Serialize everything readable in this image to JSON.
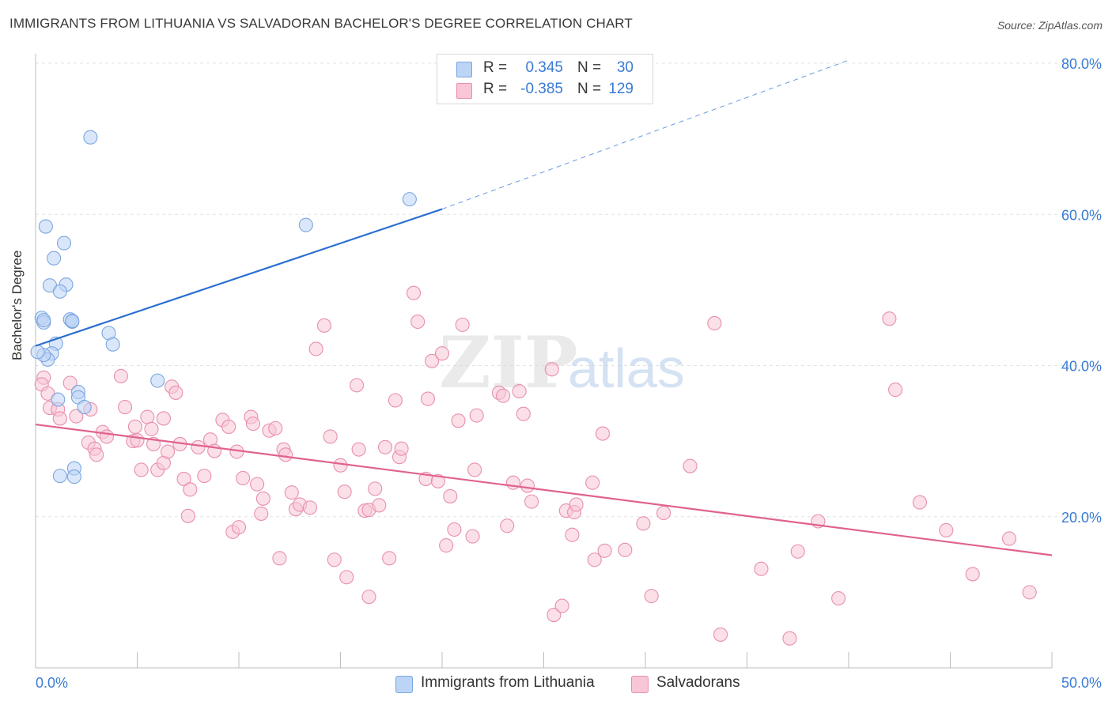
{
  "header": {
    "title": "IMMIGRANTS FROM LITHUANIA VS SALVADORAN BACHELOR'S DEGREE CORRELATION CHART",
    "source": "Source: ZipAtlas.com"
  },
  "watermark": {
    "zip": "ZIP",
    "atlas": "atlas"
  },
  "legend": {
    "rows": [
      {
        "r_label": "R = ",
        "r_value": "0.345",
        "n_label": "N = ",
        "n_value": "30"
      },
      {
        "r_label": "R = ",
        "r_value": "-0.385",
        "n_label": "N = ",
        "n_value": "129"
      }
    ]
  },
  "bottom_legend": {
    "items": [
      {
        "label": "Immigrants from Lithuania"
      },
      {
        "label": "Salvadorans"
      }
    ]
  },
  "colors": {
    "blue_fill": "#bcd4f5",
    "blue_stroke": "#7aa6e0",
    "blue_line": "#2a6fd1",
    "pink_fill": "#f8c6d6",
    "pink_stroke": "#e88fae",
    "pink_line": "#e0628f",
    "tick_label": "#3a7bd5",
    "grid": "#e3e3e3"
  },
  "chart_data": {
    "type": "scatter",
    "title": "IMMIGRANTS FROM LITHUANIA VS SALVADORAN BACHELOR'S DEGREE CORRELATION CHART",
    "xlabel": "",
    "ylabel": "Bachelor's Degree",
    "xlim": [
      0,
      50
    ],
    "ylim": [
      0,
      80
    ],
    "x_tick_labels": [
      "0.0%",
      "50.0%"
    ],
    "y_ticks": [
      20,
      40,
      60,
      80
    ],
    "y_tick_labels": [
      "20.0%",
      "40.0%",
      "60.0%",
      "80.0%"
    ],
    "grid": true,
    "legend_position": "top-center",
    "series": [
      {
        "name": "Immigrants from Lithuania",
        "r": 0.345,
        "n": 30,
        "trend": {
          "x": [
            0,
            20
          ],
          "y": [
            42.6,
            60.7
          ],
          "dashed_to": [
            40,
            80.4
          ]
        },
        "points": [
          [
            2.7,
            70.2
          ],
          [
            18.4,
            62.0
          ],
          [
            13.3,
            58.6
          ],
          [
            0.5,
            58.4
          ],
          [
            1.4,
            56.2
          ],
          [
            0.9,
            54.2
          ],
          [
            0.7,
            50.6
          ],
          [
            1.5,
            50.7
          ],
          [
            1.2,
            49.8
          ],
          [
            0.3,
            46.3
          ],
          [
            0.4,
            45.7
          ],
          [
            1.7,
            46.1
          ],
          [
            1.8,
            45.8
          ],
          [
            3.6,
            44.3
          ],
          [
            3.8,
            42.8
          ],
          [
            1.0,
            42.9
          ],
          [
            0.8,
            41.6
          ],
          [
            0.6,
            40.8
          ],
          [
            0.4,
            41.4
          ],
          [
            0.1,
            41.8
          ],
          [
            0.4,
            46.0
          ],
          [
            1.8,
            45.9
          ],
          [
            2.1,
            36.5
          ],
          [
            1.1,
            35.5
          ],
          [
            2.1,
            35.8
          ],
          [
            6.0,
            38.0
          ],
          [
            2.4,
            34.5
          ],
          [
            1.9,
            26.4
          ],
          [
            1.2,
            25.4
          ],
          [
            1.9,
            25.3
          ]
        ]
      },
      {
        "name": "Salvadorans",
        "r": -0.385,
        "n": 129,
        "trend": {
          "x": [
            0,
            50
          ],
          "y": [
            32.2,
            14.9
          ]
        },
        "points": [
          [
            0.4,
            38.4
          ],
          [
            0.3,
            37.5
          ],
          [
            0.6,
            36.3
          ],
          [
            0.7,
            34.4
          ],
          [
            1.1,
            34.2
          ],
          [
            1.2,
            33.0
          ],
          [
            1.7,
            37.7
          ],
          [
            2.0,
            33.3
          ],
          [
            2.7,
            34.2
          ],
          [
            2.6,
            29.8
          ],
          [
            2.9,
            29.0
          ],
          [
            3.3,
            31.2
          ],
          [
            3.5,
            30.6
          ],
          [
            3.0,
            28.2
          ],
          [
            4.2,
            38.6
          ],
          [
            4.4,
            34.5
          ],
          [
            4.8,
            30.0
          ],
          [
            4.9,
            31.9
          ],
          [
            5.0,
            30.1
          ],
          [
            5.2,
            26.2
          ],
          [
            5.5,
            33.2
          ],
          [
            5.7,
            31.6
          ],
          [
            5.8,
            29.6
          ],
          [
            6.0,
            26.2
          ],
          [
            6.3,
            27.1
          ],
          [
            6.3,
            33.0
          ],
          [
            6.7,
            37.2
          ],
          [
            6.9,
            36.4
          ],
          [
            6.5,
            28.6
          ],
          [
            7.1,
            29.6
          ],
          [
            7.3,
            25.0
          ],
          [
            7.6,
            23.6
          ],
          [
            7.5,
            20.1
          ],
          [
            8.0,
            29.2
          ],
          [
            8.3,
            25.4
          ],
          [
            8.6,
            30.2
          ],
          [
            8.8,
            28.7
          ],
          [
            9.2,
            32.8
          ],
          [
            9.5,
            31.9
          ],
          [
            9.7,
            18.0
          ],
          [
            9.9,
            28.6
          ],
          [
            10.0,
            18.6
          ],
          [
            10.2,
            25.1
          ],
          [
            10.6,
            33.2
          ],
          [
            10.7,
            32.3
          ],
          [
            10.9,
            24.3
          ],
          [
            11.1,
            20.4
          ],
          [
            11.2,
            22.4
          ],
          [
            11.5,
            31.4
          ],
          [
            11.8,
            31.7
          ],
          [
            12.0,
            14.5
          ],
          [
            12.2,
            28.9
          ],
          [
            12.3,
            28.2
          ],
          [
            12.6,
            23.2
          ],
          [
            12.8,
            21.0
          ],
          [
            13.0,
            21.6
          ],
          [
            13.5,
            21.2
          ],
          [
            13.8,
            42.2
          ],
          [
            14.2,
            45.3
          ],
          [
            14.5,
            30.6
          ],
          [
            14.7,
            14.3
          ],
          [
            15.0,
            26.8
          ],
          [
            15.2,
            23.3
          ],
          [
            15.3,
            12.0
          ],
          [
            15.8,
            37.4
          ],
          [
            15.9,
            28.9
          ],
          [
            16.2,
            20.8
          ],
          [
            16.4,
            20.9
          ],
          [
            16.4,
            9.4
          ],
          [
            16.7,
            23.7
          ],
          [
            16.9,
            21.5
          ],
          [
            17.2,
            29.2
          ],
          [
            17.4,
            14.5
          ],
          [
            17.7,
            35.4
          ],
          [
            17.9,
            27.9
          ],
          [
            18.0,
            29.0
          ],
          [
            18.6,
            49.6
          ],
          [
            18.8,
            45.8
          ],
          [
            19.2,
            25.0
          ],
          [
            19.3,
            35.6
          ],
          [
            19.5,
            40.6
          ],
          [
            19.8,
            24.7
          ],
          [
            20.0,
            41.6
          ],
          [
            20.2,
            16.2
          ],
          [
            20.4,
            22.7
          ],
          [
            20.6,
            18.3
          ],
          [
            20.8,
            32.7
          ],
          [
            21.0,
            45.4
          ],
          [
            21.5,
            17.4
          ],
          [
            21.6,
            26.2
          ],
          [
            21.7,
            33.4
          ],
          [
            22.8,
            36.4
          ],
          [
            23.0,
            36.0
          ],
          [
            23.2,
            18.8
          ],
          [
            23.5,
            24.5
          ],
          [
            23.8,
            36.6
          ],
          [
            24.0,
            33.6
          ],
          [
            24.2,
            24.1
          ],
          [
            24.4,
            22.0
          ],
          [
            25.4,
            39.5
          ],
          [
            25.5,
            7.0
          ],
          [
            25.9,
            8.2
          ],
          [
            26.1,
            20.8
          ],
          [
            26.4,
            17.6
          ],
          [
            26.5,
            20.6
          ],
          [
            26.6,
            21.6
          ],
          [
            27.4,
            24.5
          ],
          [
            27.5,
            14.3
          ],
          [
            27.9,
            31.0
          ],
          [
            28.0,
            15.5
          ],
          [
            29.0,
            15.6
          ],
          [
            29.9,
            19.1
          ],
          [
            30.3,
            9.5
          ],
          [
            30.9,
            20.5
          ],
          [
            32.2,
            26.7
          ],
          [
            33.7,
            4.4
          ],
          [
            33.4,
            45.6
          ],
          [
            35.7,
            13.1
          ],
          [
            37.1,
            3.9
          ],
          [
            37.5,
            15.4
          ],
          [
            38.5,
            19.4
          ],
          [
            39.5,
            9.2
          ],
          [
            42.3,
            36.8
          ],
          [
            42.0,
            46.2
          ],
          [
            43.5,
            21.9
          ],
          [
            44.8,
            18.2
          ],
          [
            46.1,
            12.4
          ],
          [
            47.9,
            17.1
          ],
          [
            48.9,
            10.0
          ]
        ]
      }
    ]
  }
}
